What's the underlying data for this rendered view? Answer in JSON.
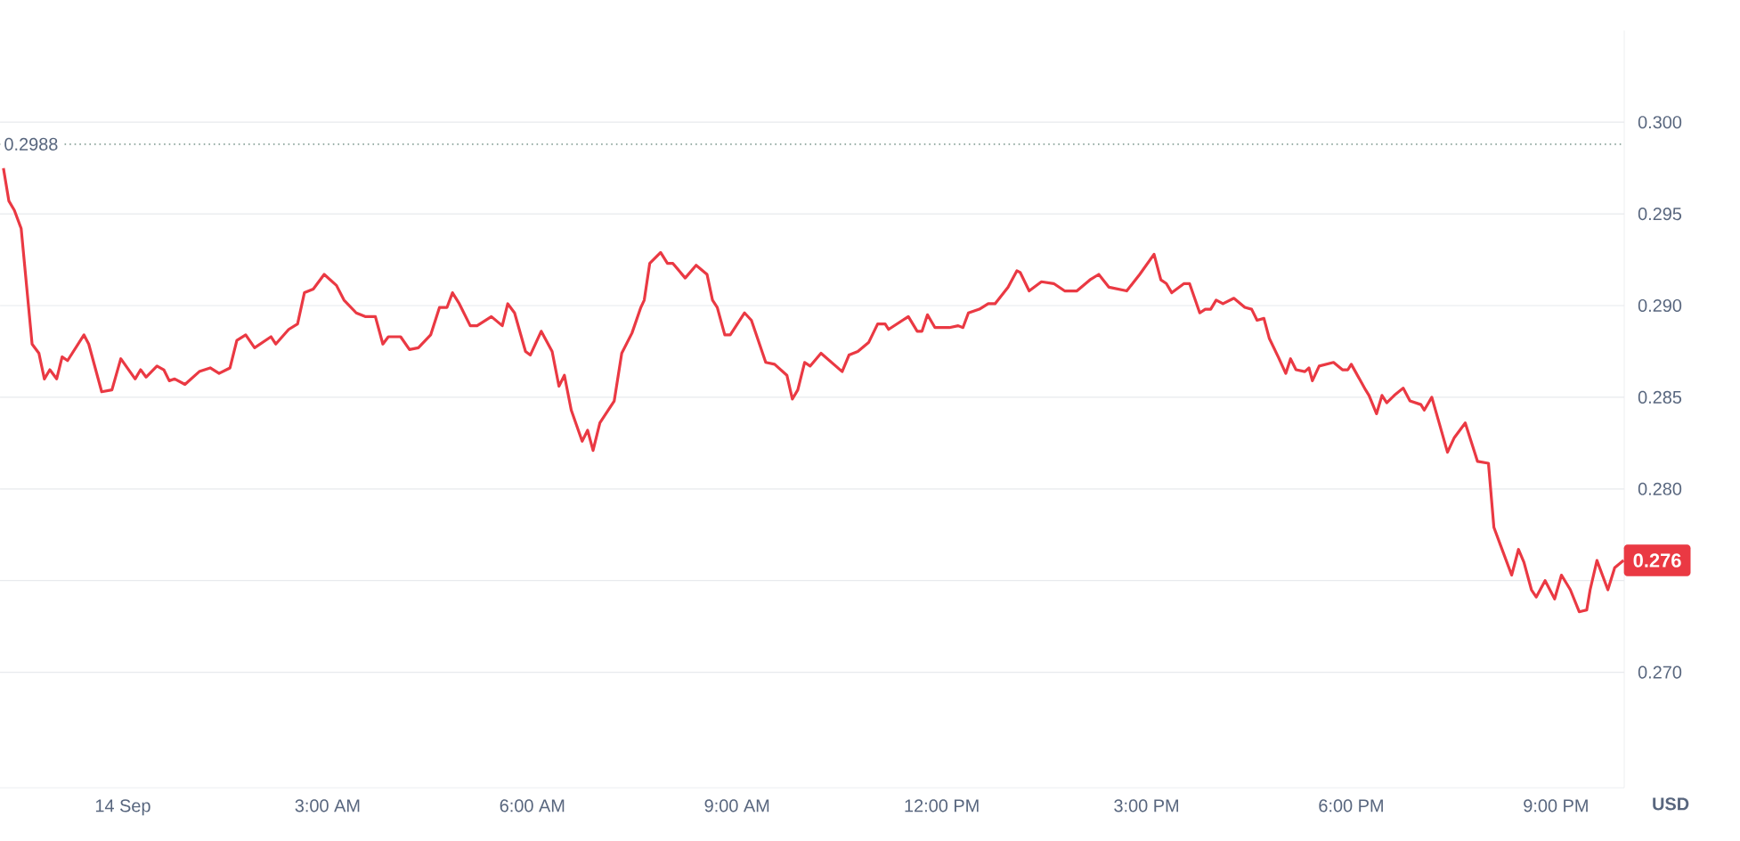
{
  "chart_data": {
    "type": "line",
    "x": [
      -1.75,
      -1.67,
      -1.59,
      -1.49,
      -1.33,
      -1.23,
      -1.15,
      -1.07,
      -0.97,
      -0.89,
      -0.81,
      -0.57,
      -0.5,
      -0.31,
      -0.16,
      -0.03,
      0.18,
      0.26,
      0.34,
      0.5,
      0.6,
      0.68,
      0.76,
      0.91,
      1.12,
      1.28,
      1.41,
      1.57,
      1.67,
      1.8,
      1.93,
      2.17,
      2.24,
      2.43,
      2.56,
      2.66,
      2.79,
      2.95,
      3.13,
      3.24,
      3.42,
      3.55,
      3.7,
      3.81,
      3.89,
      4.07,
      4.2,
      4.33,
      4.51,
      4.64,
      4.75,
      4.83,
      4.93,
      5.09,
      5.19,
      5.4,
      5.56,
      5.64,
      5.74,
      5.9,
      5.97,
      6.13,
      6.29,
      6.39,
      6.47,
      6.57,
      6.73,
      6.81,
      6.89,
      6.99,
      7.2,
      7.31,
      7.46,
      7.59,
      7.64,
      7.72,
      7.88,
      7.98,
      8.06,
      8.24,
      8.4,
      8.56,
      8.64,
      8.71,
      8.82,
      8.9,
      9.11,
      9.21,
      9.42,
      9.55,
      9.73,
      9.81,
      9.89,
      9.99,
      10.07,
      10.23,
      10.54,
      10.64,
      10.77,
      10.93,
      11.06,
      11.17,
      11.22,
      11.51,
      11.64,
      11.71,
      11.79,
      11.9,
      12.11,
      12.24,
      12.31,
      12.39,
      12.55,
      12.68,
      12.78,
      12.97,
      13.1,
      13.15,
      13.28,
      13.46,
      13.64,
      13.8,
      13.98,
      14.17,
      14.3,
      14.45,
      14.71,
      14.9,
      15.11,
      15.21,
      15.29,
      15.37,
      15.55,
      15.63,
      15.78,
      15.86,
      15.94,
      16.02,
      16.12,
      16.28,
      16.44,
      16.54,
      16.62,
      16.72,
      16.8,
      16.93,
      17.04,
      17.11,
      17.19,
      17.32,
      17.38,
      17.43,
      17.53,
      17.74,
      17.87,
      17.95,
      18.0,
      18.21,
      18.26,
      18.37,
      18.45,
      18.52,
      18.63,
      18.76,
      18.86,
      19.02,
      19.07,
      19.18,
      19.28,
      19.41,
      19.51,
      19.67,
      19.85,
      20.01,
      20.09,
      20.19,
      20.35,
      20.45,
      20.53,
      20.64,
      20.71,
      20.84,
      20.98,
      21.08,
      21.21,
      21.34,
      21.45,
      21.5,
      21.6,
      21.76,
      21.86,
      21.99
    ],
    "series": [
      {
        "color": "#ea3943",
        "values": [
          0.2975,
          0.2957,
          0.2952,
          0.2942,
          0.2879,
          0.2874,
          0.286,
          0.2865,
          0.286,
          0.2872,
          0.287,
          0.2884,
          0.2879,
          0.2853,
          0.2854,
          0.2871,
          0.286,
          0.2865,
          0.2861,
          0.2867,
          0.2865,
          0.2859,
          0.286,
          0.2857,
          0.2864,
          0.2866,
          0.2863,
          0.2866,
          0.2881,
          0.2884,
          0.2877,
          0.2883,
          0.2879,
          0.2887,
          0.289,
          0.2907,
          0.2909,
          0.2917,
          0.2911,
          0.2903,
          0.2896,
          0.2894,
          0.2894,
          0.2879,
          0.2883,
          0.2883,
          0.2876,
          0.2877,
          0.2884,
          0.2899,
          0.2899,
          0.2907,
          0.2901,
          0.2889,
          0.2889,
          0.2894,
          0.2889,
          0.2901,
          0.2896,
          0.2875,
          0.2873,
          0.2886,
          0.2875,
          0.2856,
          0.2862,
          0.2843,
          0.2826,
          0.2832,
          0.2821,
          0.2836,
          0.2848,
          0.2874,
          0.2885,
          0.2899,
          0.2903,
          0.2923,
          0.2929,
          0.2923,
          0.2923,
          0.2915,
          0.2922,
          0.2917,
          0.2903,
          0.2899,
          0.2884,
          0.2884,
          0.2896,
          0.2892,
          0.2869,
          0.2868,
          0.2862,
          0.2849,
          0.2854,
          0.2869,
          0.2867,
          0.2874,
          0.2864,
          0.2873,
          0.2875,
          0.288,
          0.289,
          0.289,
          0.2887,
          0.2894,
          0.2886,
          0.2886,
          0.2895,
          0.2888,
          0.2888,
          0.2889,
          0.2888,
          0.2896,
          0.2898,
          0.2901,
          0.2901,
          0.291,
          0.2919,
          0.2918,
          0.2908,
          0.2913,
          0.2912,
          0.2908,
          0.2908,
          0.2914,
          0.2917,
          0.291,
          0.2908,
          0.2917,
          0.2928,
          0.2914,
          0.2912,
          0.2907,
          0.2912,
          0.2912,
          0.2896,
          0.2898,
          0.2898,
          0.2903,
          0.2901,
          0.2904,
          0.2899,
          0.2898,
          0.2892,
          0.2893,
          0.2882,
          0.2872,
          0.2863,
          0.2871,
          0.2865,
          0.2864,
          0.2866,
          0.2859,
          0.2867,
          0.2869,
          0.2865,
          0.2865,
          0.2868,
          0.2854,
          0.2851,
          0.2841,
          0.2851,
          0.2847,
          0.2851,
          0.2855,
          0.2848,
          0.2846,
          0.2843,
          0.285,
          0.2837,
          0.282,
          0.2828,
          0.2836,
          0.2815,
          0.2814,
          0.2779,
          0.2769,
          0.2753,
          0.2767,
          0.276,
          0.2745,
          0.2741,
          0.275,
          0.274,
          0.2753,
          0.2745,
          0.2733,
          0.2734,
          0.2745,
          0.2761,
          0.2745,
          0.2757,
          0.2761
        ]
      }
    ],
    "xlim": [
      -1.8,
      22.0
    ],
    "ylim": [
      0.2637,
      0.305
    ],
    "xticks": [
      {
        "value": 0,
        "label": "14 Sep"
      },
      {
        "value": 3,
        "label": "3:00 AM"
      },
      {
        "value": 6,
        "label": "6:00 AM"
      },
      {
        "value": 9,
        "label": "9:00 AM"
      },
      {
        "value": 12,
        "label": "12:00 PM"
      },
      {
        "value": 15,
        "label": "3:00 PM"
      },
      {
        "value": 18,
        "label": "6:00 PM"
      },
      {
        "value": 21,
        "label": "9:00 PM"
      }
    ],
    "yticks": [
      {
        "value": 0.27,
        "label": "0.270"
      },
      {
        "value": 0.275,
        "label": null
      },
      {
        "value": 0.28,
        "label": "0.280"
      },
      {
        "value": 0.285,
        "label": "0.285"
      },
      {
        "value": 0.29,
        "label": "0.290"
      },
      {
        "value": 0.295,
        "label": "0.295"
      },
      {
        "value": 0.3,
        "label": "0.300"
      }
    ],
    "ylabel": "USD",
    "grid": "y",
    "ref_lines": [
      {
        "axis": "y",
        "value": 0.2988,
        "label": "0.2988",
        "color": "#8aa39a",
        "line_style": "dotted"
      }
    ],
    "annotations": [
      {
        "text": "0.276",
        "x": 21.99,
        "y": 0.2761
      }
    ]
  }
}
